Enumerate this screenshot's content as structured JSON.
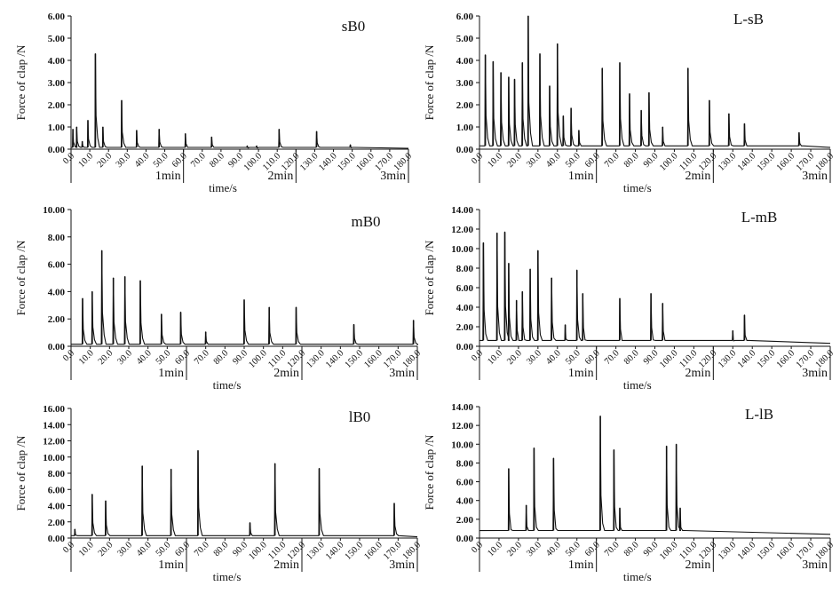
{
  "chart_data": [
    {
      "type": "line",
      "title": "sB0",
      "ylabel": "Force of clap /N",
      "xlabel": "time/s",
      "ylim": [
        0,
        6
      ],
      "yticks": [
        "0.00",
        "1.00",
        "2.00",
        "3.00",
        "4.00",
        "5.00",
        "6.00"
      ],
      "xticks": [
        "0.0",
        "10.0",
        "20.0",
        "30.0",
        "40.0",
        "50.0",
        "60.0",
        "70.0",
        "80.0",
        "90.0",
        "100.0",
        "110.0",
        "120.0",
        "130.0",
        "140.0",
        "150.0",
        "160.0",
        "170.0",
        "180.0"
      ],
      "minute_labels": [
        "1min",
        "2min",
        "3min"
      ],
      "spikes": [
        [
          1,
          0.9
        ],
        [
          3,
          1.0
        ],
        [
          6,
          0.35
        ],
        [
          9,
          1.3
        ],
        [
          13,
          4.3
        ],
        [
          17,
          1.0
        ],
        [
          27,
          2.2
        ],
        [
          35,
          0.85
        ],
        [
          47,
          0.9
        ],
        [
          61,
          0.7
        ],
        [
          75,
          0.55
        ],
        [
          94,
          0.15
        ],
        [
          99,
          0.15
        ],
        [
          111,
          0.9
        ],
        [
          131,
          0.8
        ],
        [
          149,
          0.2
        ]
      ],
      "baseline": 0.08
    },
    {
      "type": "line",
      "title": "L-sB",
      "ylabel": "Force of clap /N",
      "xlabel": "time/s",
      "ylim": [
        0,
        6
      ],
      "yticks": [
        "0.00",
        "1.00",
        "2.00",
        "3.00",
        "4.00",
        "5.00",
        "6.00"
      ],
      "xticks": [
        "0.0",
        "10.0",
        "20.0",
        "30.0",
        "40.0",
        "50.0",
        "60.0",
        "70.0",
        "80.0",
        "90.0",
        "100.0",
        "110.0",
        "120.0",
        "130.0",
        "140.0",
        "150.0",
        "160.0",
        "170.0",
        "180.0"
      ],
      "minute_labels": [
        "1min",
        "2min",
        "3min"
      ],
      "spikes": [
        [
          3,
          4.25
        ],
        [
          7,
          3.95
        ],
        [
          11,
          3.45
        ],
        [
          15,
          3.25
        ],
        [
          18,
          3.15
        ],
        [
          22,
          3.9
        ],
        [
          25,
          6.0
        ],
        [
          31,
          4.3
        ],
        [
          36,
          2.85
        ],
        [
          40,
          4.75
        ],
        [
          43,
          1.5
        ],
        [
          47,
          1.85
        ],
        [
          51,
          0.85
        ],
        [
          63,
          3.65
        ],
        [
          72,
          3.9
        ],
        [
          77,
          2.5
        ],
        [
          83,
          1.75
        ],
        [
          87,
          2.55
        ],
        [
          94,
          1.0
        ],
        [
          107,
          3.65
        ],
        [
          118,
          2.2
        ],
        [
          128,
          1.6
        ],
        [
          136,
          1.15
        ],
        [
          164,
          0.75
        ]
      ],
      "baseline": 0.15
    },
    {
      "type": "line",
      "title": "mB0",
      "ylabel": "Force of clap /N",
      "xlabel": "time/s",
      "ylim": [
        0,
        10
      ],
      "yticks": [
        "0.00",
        "2.00",
        "4.00",
        "6.00",
        "8.00",
        "10.00"
      ],
      "xticks": [
        "0.0",
        "10.0",
        "20.0",
        "30.0",
        "40.0",
        "50.0",
        "60.0",
        "70.0",
        "80.0",
        "90.0",
        "100.0",
        "110.0",
        "120.0",
        "130.0",
        "140.0",
        "150.0",
        "160.0",
        "170.0",
        "180.0"
      ],
      "minute_labels": [
        "1min",
        "2min",
        "3min"
      ],
      "spikes": [
        [
          6,
          3.5
        ],
        [
          11,
          4.0
        ],
        [
          16,
          7.0
        ],
        [
          22,
          5.0
        ],
        [
          28,
          5.1
        ],
        [
          36,
          4.8
        ],
        [
          47,
          2.35
        ],
        [
          57,
          2.5
        ],
        [
          70,
          1.05
        ],
        [
          90,
          3.4
        ],
        [
          103,
          2.85
        ],
        [
          117,
          2.85
        ],
        [
          147,
          1.6
        ],
        [
          178,
          1.9
        ]
      ],
      "baseline": 0.15
    },
    {
      "type": "line",
      "title": "L-mB",
      "ylabel": "Force of clap /N",
      "xlabel": "time/s",
      "ylim": [
        0,
        14
      ],
      "yticks": [
        "0.00",
        "2.00",
        "4.00",
        "6.00",
        "8.00",
        "10.00",
        "12.00",
        "14.00"
      ],
      "xticks": [
        "0.0",
        "10.0",
        "20.0",
        "30.0",
        "40.0",
        "50.0",
        "60.0",
        "70.0",
        "80.0",
        "90.0",
        "100.0",
        "110.0",
        "120.0",
        "130.0",
        "140.0",
        "150.0",
        "160.0",
        "170.0",
        "180.0"
      ],
      "minute_labels": [
        "1min",
        "2min",
        "3min"
      ],
      "spikes": [
        [
          2,
          10.6
        ],
        [
          9,
          11.6
        ],
        [
          13,
          11.7
        ],
        [
          15,
          8.5
        ],
        [
          19,
          4.7
        ],
        [
          22,
          5.6
        ],
        [
          26,
          7.9
        ],
        [
          30,
          9.8
        ],
        [
          37,
          7.0
        ],
        [
          44,
          2.2
        ],
        [
          50,
          7.8
        ],
        [
          53,
          5.4
        ],
        [
          72,
          4.9
        ],
        [
          88,
          5.4
        ],
        [
          94,
          4.4
        ],
        [
          130,
          1.6
        ],
        [
          136,
          3.2
        ]
      ],
      "baseline": 0.6
    },
    {
      "type": "line",
      "title": "lB0",
      "ylabel": "Force of clap /N",
      "xlabel": "time/s",
      "ylim": [
        0,
        16
      ],
      "yticks": [
        "0.00",
        "2.00",
        "4.00",
        "6.00",
        "8.00",
        "10.00",
        "12.00",
        "14.00",
        "16.00"
      ],
      "xticks": [
        "0.0",
        "10.0",
        "20.0",
        "30.0",
        "40.0",
        "50.0",
        "60.0",
        "70.0",
        "80.0",
        "90.0",
        "100.0",
        "110.0",
        "120.0",
        "130.0",
        "140.0",
        "150.0",
        "160.0",
        "170.0",
        "180.0"
      ],
      "minute_labels": [
        "1min",
        "2min",
        "3min"
      ],
      "spikes": [
        [
          2,
          1.1
        ],
        [
          11,
          5.4
        ],
        [
          18,
          4.6
        ],
        [
          37,
          8.9
        ],
        [
          52,
          8.5
        ],
        [
          66,
          10.8
        ],
        [
          93,
          1.9
        ],
        [
          106,
          9.2
        ],
        [
          129,
          8.6
        ],
        [
          168,
          4.3
        ]
      ],
      "baseline": 0.3
    },
    {
      "type": "line",
      "title": "L-lB",
      "ylabel": "Force of clap /N",
      "xlabel": "time/s",
      "ylim": [
        0,
        14
      ],
      "yticks": [
        "0.00",
        "2.00",
        "4.00",
        "6.00",
        "8.00",
        "10.00",
        "12.00",
        "14.00"
      ],
      "xticks": [
        "0.0",
        "10.0",
        "20.0",
        "30.0",
        "40.0",
        "50.0",
        "60.0",
        "70.0",
        "80.0",
        "90.0",
        "100.0",
        "110.0",
        "120.0",
        "130.0",
        "140.0",
        "150.0",
        "160.0",
        "170.0",
        "180.0"
      ],
      "minute_labels": [
        "1min",
        "2min",
        "3min"
      ],
      "spikes": [
        [
          15,
          7.4
        ],
        [
          24,
          3.5
        ],
        [
          28,
          9.6
        ],
        [
          38,
          8.5
        ],
        [
          62,
          13.0
        ],
        [
          69,
          9.4
        ],
        [
          72,
          3.2
        ],
        [
          96,
          9.8
        ],
        [
          101,
          10.0
        ],
        [
          103,
          3.2
        ]
      ],
      "baseline": 0.8
    }
  ]
}
